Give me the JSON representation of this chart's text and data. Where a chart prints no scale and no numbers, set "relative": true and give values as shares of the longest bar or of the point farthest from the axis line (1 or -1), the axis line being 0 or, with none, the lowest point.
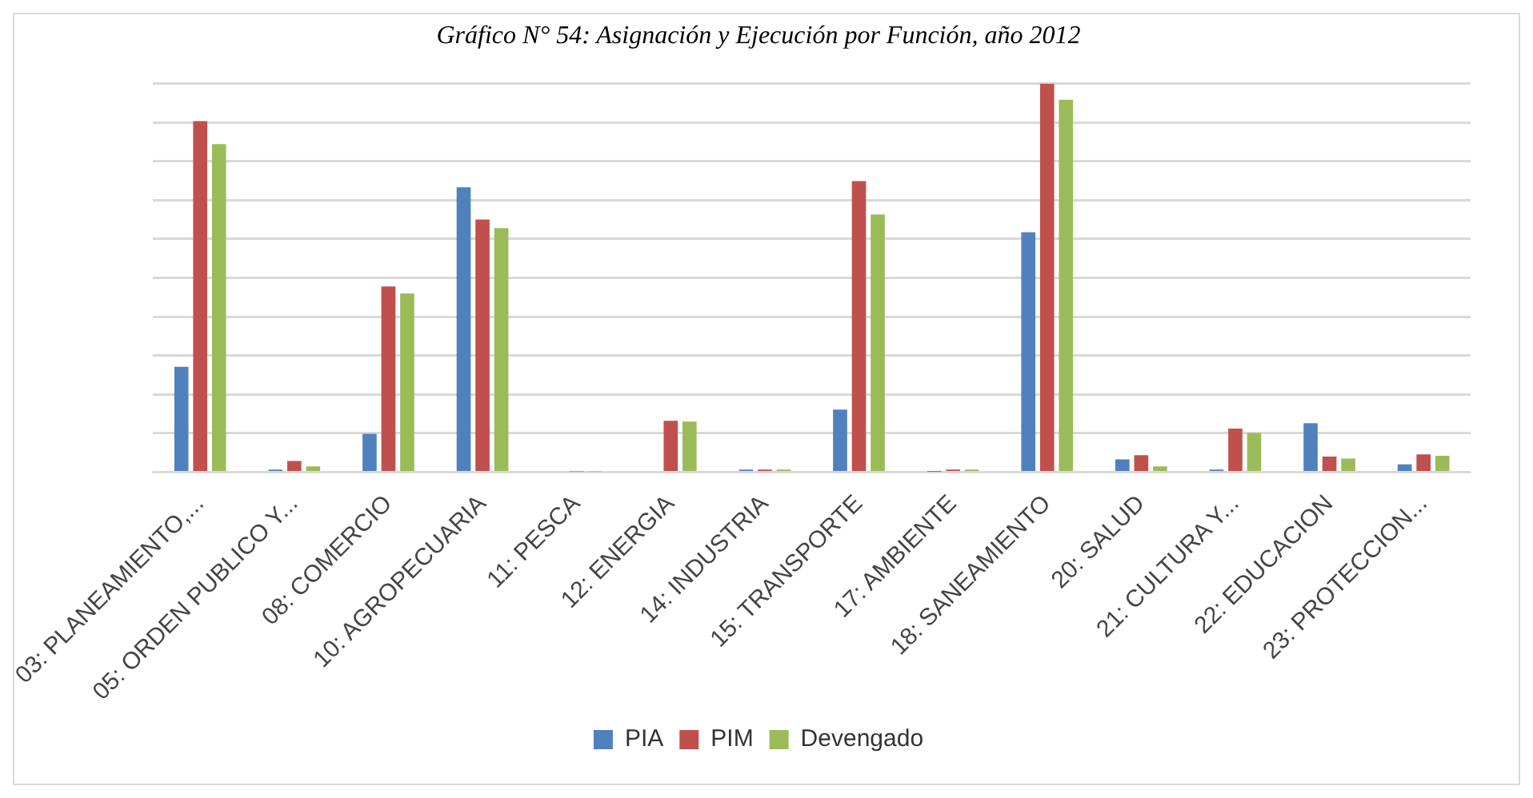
{
  "chart_data": {
    "type": "bar",
    "title": "Gráfico N° 54: Asignación y Ejecución por Función, año 2012",
    "relative": true,
    "grid": "y",
    "legend": "bottom",
    "categories": [
      "03: PLANEAMIENTO,...",
      "05: ORDEN PUBLICO Y...",
      "08: COMERCIO",
      "10: AGROPECUARIA",
      "11: PESCA",
      "12: ENERGIA",
      "14: INDUSTRIA",
      "15: TRANSPORTE",
      "17: AMBIENTE",
      "18: SANEAMIENTO",
      "20: SALUD",
      "21: CULTURA Y...",
      "22: EDUCACION",
      "23: PROTECCION..."
    ],
    "series": [
      {
        "name": "PIA",
        "color": "#4f81bd",
        "values": [
          0.271,
          0.007,
          0.099,
          0.733,
          0,
          0,
          0.007,
          0.161,
          0.001,
          0.617,
          0.033,
          0.007,
          0.126,
          0.02
        ]
      },
      {
        "name": "PIM",
        "color": "#c0504d",
        "values": [
          0.903,
          0.029,
          0.478,
          0.65,
          0.002,
          0.132,
          0.007,
          0.749,
          0.007,
          1,
          0.044,
          0.112,
          0.04,
          0.046
        ]
      },
      {
        "name": "Devengado",
        "color": "#9bbb59",
        "values": [
          0.844,
          0.015,
          0.46,
          0.628,
          0.002,
          0.13,
          0.007,
          0.663,
          0.007,
          0.958,
          0.015,
          0.101,
          0.035,
          0.042
        ]
      }
    ]
  }
}
